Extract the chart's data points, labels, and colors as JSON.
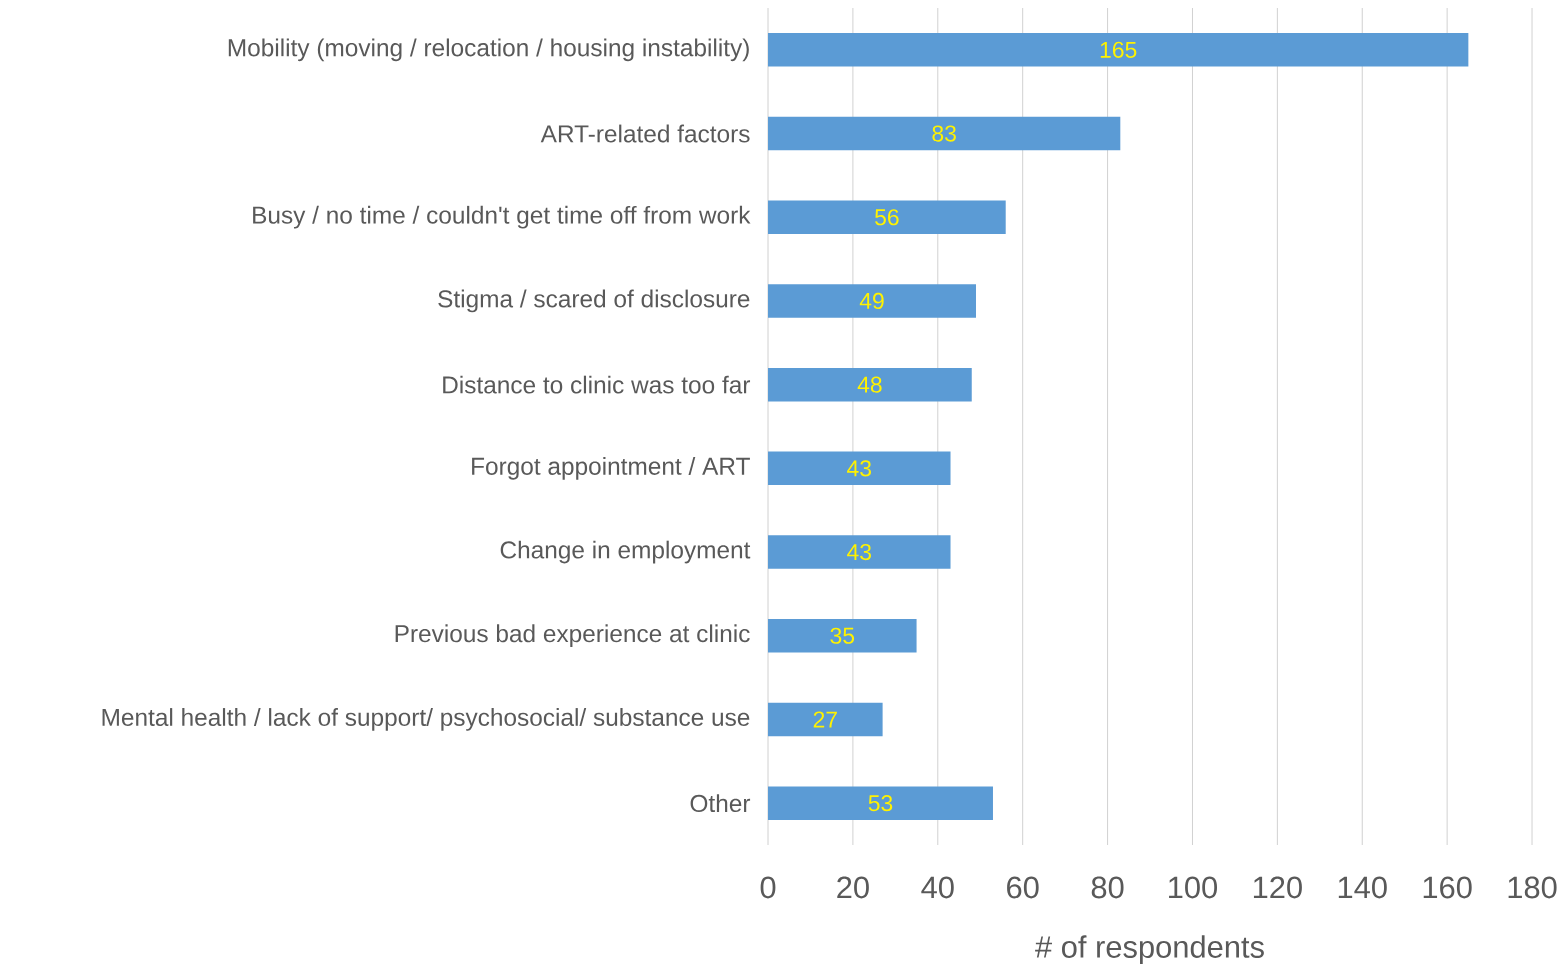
{
  "chart_data": {
    "type": "bar",
    "orientation": "horizontal",
    "xlabel": "# of respondents",
    "categories": [
      "Mobility (moving / relocation / housing instability)",
      "ART-related factors",
      "Busy / no time / couldn't get time off from work",
      "Stigma / scared of disclosure",
      "Distance to clinic was too far",
      "Forgot appointment / ART",
      "Change in employment",
      "Previous bad experience at clinic",
      "Mental health / lack of support/ psychosocial/ substance use",
      "Other"
    ],
    "values": [
      165,
      83,
      56,
      49,
      48,
      43,
      43,
      35,
      27,
      53
    ],
    "color": "#5b9bd5",
    "data_labels": true,
    "grid": "x",
    "xlim": [
      0,
      180
    ],
    "xticks": [
      0,
      20,
      40,
      60,
      80,
      100,
      120,
      140,
      160,
      180
    ]
  }
}
